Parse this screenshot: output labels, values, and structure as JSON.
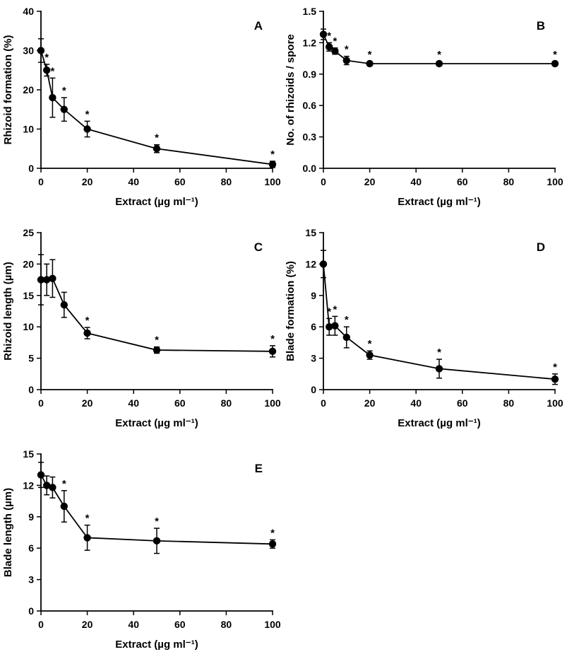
{
  "figure": {
    "background": "#ffffff",
    "marker_color": "#000000",
    "line_color": "#000000",
    "significance_symbol": "*"
  },
  "chart_data": [
    {
      "type": "line",
      "panel": "A",
      "xlabel": "Extract (µg ml⁻¹)",
      "ylabel": "Rhizoid formation (%)",
      "xlim": [
        0,
        100
      ],
      "ylim": [
        0,
        40
      ],
      "xticks": [
        0,
        20,
        40,
        60,
        80,
        100
      ],
      "xtick_labels": [
        "0",
        "20",
        "40",
        "60",
        "80",
        "100"
      ],
      "ytick_vals": [
        0,
        10,
        20,
        30,
        40
      ],
      "ytick_labels": [
        "0",
        "10",
        "20",
        "30",
        "40"
      ],
      "x": [
        0,
        2.5,
        5,
        10,
        20,
        50,
        100
      ],
      "y": [
        30,
        25,
        18,
        15,
        10,
        5,
        1
      ],
      "err": [
        3,
        1.5,
        5,
        3,
        2,
        1,
        0.8
      ],
      "sig": [
        false,
        true,
        true,
        true,
        true,
        true,
        true
      ],
      "legend": "none",
      "grid": false
    },
    {
      "type": "line",
      "panel": "B",
      "xlabel": "Extract (µg ml⁻¹)",
      "ylabel": "No. of rhizoids / spore",
      "xlim": [
        0,
        100
      ],
      "ylim": [
        0,
        1.5
      ],
      "xticks": [
        0,
        20,
        40,
        60,
        80,
        100
      ],
      "xtick_labels": [
        "0",
        "20",
        "40",
        "60",
        "80",
        "100"
      ],
      "ytick_vals": [
        0,
        0.3,
        0.6,
        0.9,
        1.2,
        1.5
      ],
      "ytick_labels": [
        "0.0",
        "0.3",
        "0.6",
        "0.9",
        "1.2",
        "1.5"
      ],
      "x": [
        0,
        2.5,
        5,
        10,
        20,
        50,
        100
      ],
      "y": [
        1.28,
        1.16,
        1.12,
        1.03,
        1.0,
        1.0,
        1.0
      ],
      "err": [
        0.05,
        0.04,
        0.03,
        0.04,
        0.02,
        0.02,
        0.02
      ],
      "sig": [
        false,
        true,
        true,
        true,
        true,
        true,
        true
      ],
      "legend": "none",
      "grid": false
    },
    {
      "type": "line",
      "panel": "C",
      "xlabel": "Extract (µg ml⁻¹)",
      "ylabel": "Rhizoid length (µm)",
      "xlim": [
        0,
        100
      ],
      "ylim": [
        0,
        25
      ],
      "xticks": [
        0,
        20,
        40,
        60,
        80,
        100
      ],
      "xtick_labels": [
        "0",
        "20",
        "40",
        "60",
        "80",
        "100"
      ],
      "ytick_vals": [
        0,
        5,
        10,
        15,
        20,
        25
      ],
      "ytick_labels": [
        "0",
        "5",
        "10",
        "15",
        "20",
        "25"
      ],
      "x": [
        0,
        2.5,
        5,
        10,
        20,
        50,
        100
      ],
      "y": [
        17.5,
        17.5,
        17.7,
        13.5,
        9,
        6.3,
        6.1
      ],
      "err": [
        4,
        2.5,
        3,
        2,
        0.9,
        0.5,
        0.9
      ],
      "sig": [
        false,
        false,
        false,
        false,
        true,
        true,
        true
      ],
      "legend": "none",
      "grid": false
    },
    {
      "type": "line",
      "panel": "D",
      "xlabel": "Extract (µg ml⁻¹)",
      "ylabel": "Blade formation (%)",
      "xlim": [
        0,
        100
      ],
      "ylim": [
        0,
        15
      ],
      "xticks": [
        0,
        20,
        40,
        60,
        80,
        100
      ],
      "xtick_labels": [
        "0",
        "20",
        "40",
        "60",
        "80",
        "100"
      ],
      "ytick_vals": [
        0,
        3,
        6,
        9,
        12,
        15
      ],
      "ytick_labels": [
        "0",
        "3",
        "6",
        "9",
        "12",
        "15"
      ],
      "x": [
        0,
        2.5,
        5,
        10,
        20,
        50,
        100
      ],
      "y": [
        12,
        6,
        6.1,
        5,
        3.3,
        2,
        1
      ],
      "err": [
        1.3,
        0.8,
        0.9,
        1.0,
        0.4,
        0.9,
        0.5
      ],
      "sig": [
        false,
        true,
        true,
        true,
        true,
        true,
        true
      ],
      "legend": "none",
      "grid": false
    },
    {
      "type": "line",
      "panel": "E",
      "xlabel": "Extract (µg ml⁻¹)",
      "ylabel": "Blade length (µm)",
      "xlim": [
        0,
        100
      ],
      "ylim": [
        0,
        15
      ],
      "xticks": [
        0,
        20,
        40,
        60,
        80,
        100
      ],
      "xtick_labels": [
        "0",
        "20",
        "40",
        "60",
        "80",
        "100"
      ],
      "ytick_vals": [
        0,
        3,
        6,
        9,
        12,
        15
      ],
      "ytick_labels": [
        "0",
        "3",
        "6",
        "9",
        "12",
        "15"
      ],
      "x": [
        0,
        2.5,
        5,
        10,
        20,
        50,
        100
      ],
      "y": [
        13,
        12,
        11.8,
        10,
        7,
        6.7,
        6.4
      ],
      "err": [
        1.2,
        0.9,
        1.0,
        1.5,
        1.2,
        1.2,
        0.4
      ],
      "sig": [
        false,
        false,
        false,
        true,
        true,
        true,
        true
      ],
      "legend": "none",
      "grid": false
    }
  ]
}
